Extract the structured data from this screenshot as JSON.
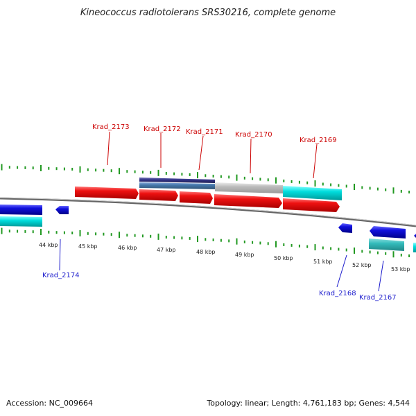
{
  "title": "Kineococcus radiotolerans SRS30216, complete genome",
  "footer": {
    "accession": "Accession: NC_009664",
    "summary": "Topology: linear; Length: 4,761,183 bp; Genes: 4,544"
  },
  "scale_labels": [
    "44 kbp",
    "45 kbp",
    "46 kbp",
    "47 kbp",
    "48 kbp",
    "49 kbp",
    "50 kbp",
    "51 kbp",
    "52 kbp",
    "53 kbp"
  ],
  "genes_top": [
    "Krad_2173",
    "Krad_2172",
    "Krad_2171",
    "Krad_2170",
    "Krad_2169"
  ],
  "genes_bottom": [
    "Krad_2174",
    "Krad_2168",
    "Krad_2167"
  ],
  "colors": {
    "forward_gene": "#ee1111",
    "reverse_gene": "#1111dd",
    "cds_cyan": "#00dddd",
    "cds_teal": "#33bbbb",
    "cds_steel": "#4477aa",
    "cds_navy": "#333388",
    "cds_grey": "#bbbbbb",
    "tick": "#229922",
    "backbone": "#666666",
    "forward_label": "#cc0000",
    "reverse_label": "#1a1acc"
  }
}
